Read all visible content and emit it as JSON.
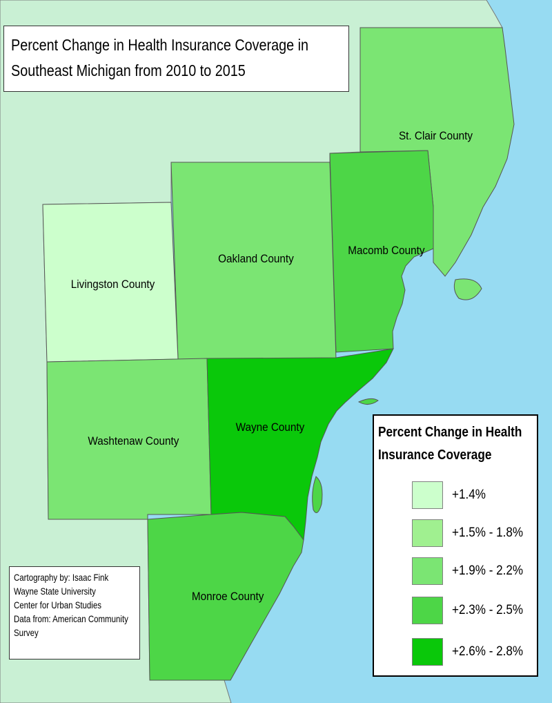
{
  "map": {
    "title_lines": [
      "Percent Change in Health Insurance Coverage in",
      "Southeast Michigan from 2010 to 2015"
    ],
    "colors": {
      "water": "#97dbf2",
      "land_outside": "#c9f0d4",
      "class_1": "#ccffcc",
      "class_2": "#a0f090",
      "class_3": "#7be573",
      "class_4": "#4dd647",
      "class_5": "#0ac80a",
      "border": "#555555"
    },
    "counties": [
      {
        "name": "Livingston County",
        "color": "#ccffcc"
      },
      {
        "name": "Oakland County",
        "color": "#7be573"
      },
      {
        "name": "Macomb County",
        "color": "#4dd647"
      },
      {
        "name": "St. Clair County",
        "color": "#7be573"
      },
      {
        "name": "Washtenaw County",
        "color": "#7be573"
      },
      {
        "name": "Wayne County",
        "color": "#0ac80a"
      },
      {
        "name": "Monroe County",
        "color": "#4dd647"
      }
    ]
  },
  "legend": {
    "title_lines": [
      "Percent Change in Health",
      "Insurance Coverage"
    ],
    "items": [
      {
        "label": "+1.4%",
        "color": "#ccffcc"
      },
      {
        "label": "+1.5% - 1.8%",
        "color": "#a0f090"
      },
      {
        "label": "+1.9% - 2.2%",
        "color": "#7be573"
      },
      {
        "label": "+2.3% - 2.5%",
        "color": "#4dd647"
      },
      {
        "label": "+2.6% - 2.8%",
        "color": "#0ac80a"
      }
    ]
  },
  "credits": {
    "lines": [
      "Cartography by: Isaac Fink",
      "Wayne State University",
      "Center for Urban Studies",
      "Data from: American Community",
      "Survey"
    ]
  }
}
